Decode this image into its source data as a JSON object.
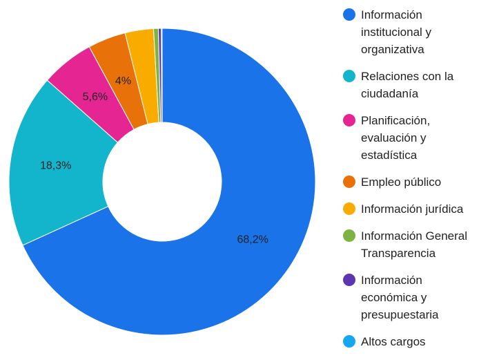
{
  "chart_data": {
    "type": "donut",
    "categories": [
      "Información institucional y organizativa",
      "Relaciones con la ciudadanía",
      "Planificación, evaluación y estadística",
      "Empleo público",
      "Información jurídica",
      "Información General Transparencia",
      "Información económica y presupuestaria",
      "Altos cargos"
    ],
    "values": [
      68.2,
      18.3,
      5.6,
      4,
      3,
      0.5,
      0.3,
      0.1
    ],
    "value_labels": [
      "68,2%",
      "18,3%",
      "5,6%",
      "4%",
      null,
      null,
      null,
      null
    ],
    "colors": [
      "#1a73e8",
      "#12b5cb",
      "#e52592",
      "#e8710a",
      "#f9ab00",
      "#7cb342",
      "#5e35b1",
      "#16a7f3"
    ],
    "legend": "right"
  }
}
